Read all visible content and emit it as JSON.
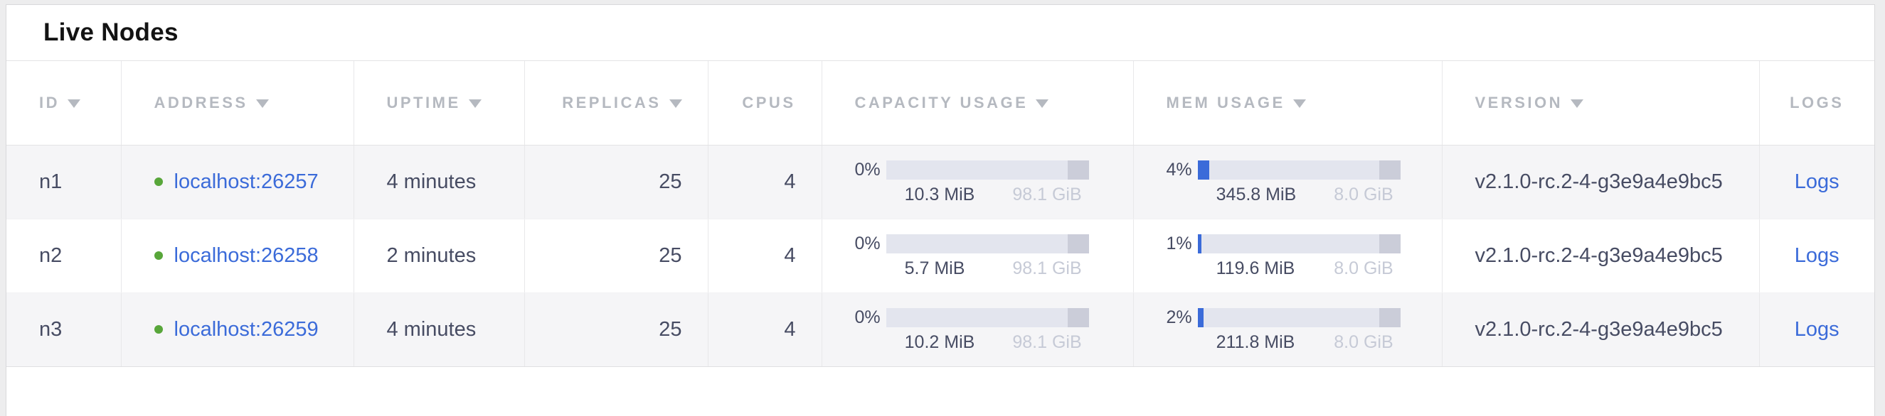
{
  "panel": {
    "title": "Live Nodes"
  },
  "table": {
    "columns": [
      {
        "key": "id",
        "label": "ID",
        "sortable": true
      },
      {
        "key": "address",
        "label": "ADDRESS",
        "sortable": true
      },
      {
        "key": "uptime",
        "label": "UPTIME",
        "sortable": true
      },
      {
        "key": "replicas",
        "label": "REPLICAS",
        "sortable": true
      },
      {
        "key": "cpus",
        "label": "CPUS",
        "sortable": false
      },
      {
        "key": "capacity",
        "label": "CAPACITY USAGE",
        "sortable": true
      },
      {
        "key": "mem",
        "label": "MEM USAGE",
        "sortable": true
      },
      {
        "key": "version",
        "label": "VERSION",
        "sortable": true
      },
      {
        "key": "logs",
        "label": "LOGS",
        "sortable": false
      }
    ],
    "rows": [
      {
        "id": "n1",
        "status": "live",
        "address": "localhost:26257",
        "uptime": "4 minutes",
        "replicas": "25",
        "cpus": "4",
        "capacity": {
          "percent": "0%",
          "fill": 0,
          "used": "10.3 MiB",
          "total": "98.1 GiB"
        },
        "memory": {
          "percent": "4%",
          "fill": 4,
          "used": "345.8 MiB",
          "total": "8.0 GiB"
        },
        "version": "v2.1.0-rc.2-4-g3e9a4e9bc5",
        "logs_label": "Logs"
      },
      {
        "id": "n2",
        "status": "live",
        "address": "localhost:26258",
        "uptime": "2 minutes",
        "replicas": "25",
        "cpus": "4",
        "capacity": {
          "percent": "0%",
          "fill": 0,
          "used": "5.7 MiB",
          "total": "98.1 GiB"
        },
        "memory": {
          "percent": "1%",
          "fill": 1,
          "used": "119.6 MiB",
          "total": "8.0 GiB"
        },
        "version": "v2.1.0-rc.2-4-g3e9a4e9bc5",
        "logs_label": "Logs"
      },
      {
        "id": "n3",
        "status": "live",
        "address": "localhost:26259",
        "uptime": "4 minutes",
        "replicas": "25",
        "cpus": "4",
        "capacity": {
          "percent": "0%",
          "fill": 0,
          "used": "10.2 MiB",
          "total": "98.1 GiB"
        },
        "memory": {
          "percent": "2%",
          "fill": 2,
          "used": "211.8 MiB",
          "total": "8.0 GiB"
        },
        "version": "v2.1.0-rc.2-4-g3e9a4e9bc5",
        "logs_label": "Logs"
      }
    ]
  },
  "colors": {
    "link": "#3b6bd9",
    "live_dot": "#58a63a",
    "bar_bg": "#e3e5ee",
    "bar_fill": "#3b6bd9",
    "bar_endcap": "#cbcdd9"
  }
}
